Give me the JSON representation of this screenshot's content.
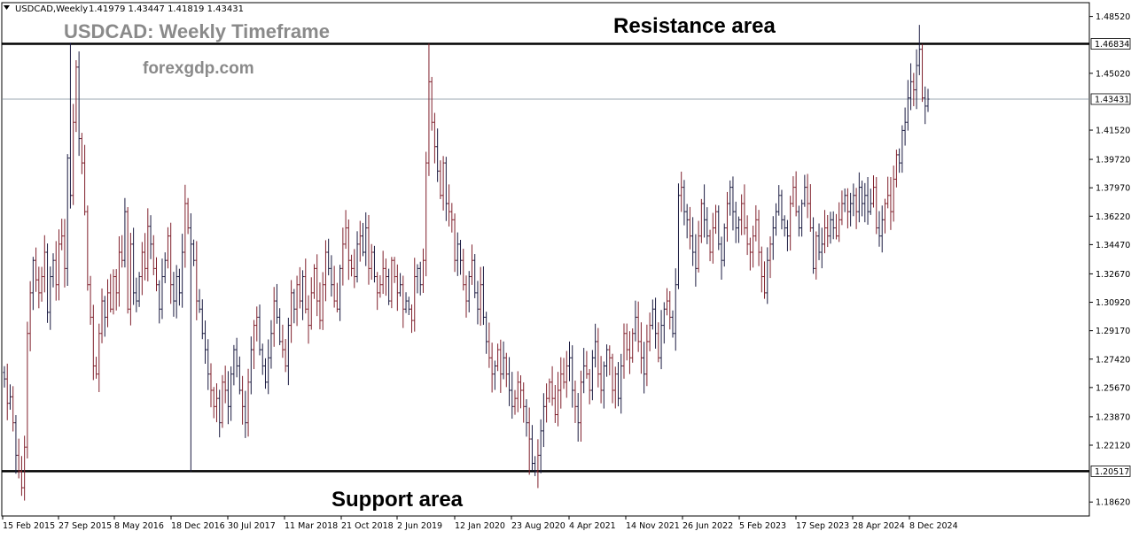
{
  "header": {
    "symbol_line": "USDCAD,Weekly",
    "ohlc": "1.41979 1.43447 1.41819 1.43431"
  },
  "annotations": {
    "title": "USDCAD: Weekly Timeframe",
    "source": "forexgdp.com",
    "resistance_label": "Resistance area",
    "support_label": "Support area"
  },
  "colors": {
    "bar": "#7f1f2b",
    "bar_dark": "#1a1a40",
    "level_line": "#000000",
    "current_price_line": "#7a8a96",
    "axis": "#000000"
  },
  "chart_data": {
    "type": "ohlc",
    "title": "USDCAD: Weekly Timeframe",
    "ylim": [
      1.1776,
      1.4937
    ],
    "y_ticks": [
      "1.48520",
      "1.45020",
      "1.41520",
      "1.39720",
      "1.37970",
      "1.36220",
      "1.34470",
      "1.32670",
      "1.30920",
      "1.29170",
      "1.27420",
      "1.25670",
      "1.23870",
      "1.22120",
      "1.18620"
    ],
    "y_tick_values": [
      1.4852,
      1.4502,
      1.4152,
      1.3972,
      1.3797,
      1.3622,
      1.3447,
      1.3267,
      1.3092,
      1.2917,
      1.2742,
      1.2567,
      1.2387,
      1.2212,
      1.1862
    ],
    "x_ticks": [
      "15 Feb 2015",
      "27 Sep 2015",
      "8 May 2016",
      "18 Dec 2016",
      "30 Jul 2017",
      "11 Mar 2018",
      "21 Oct 2018",
      "2 Jun 2019",
      "12 Jan 2020",
      "23 Aug 2020",
      "4 Apr 2021",
      "14 Nov 2021",
      "26 Jun 2022",
      "5 Feb 2023",
      "17 Sep 2023",
      "28 Apr 2024",
      "8 Dec 2024"
    ],
    "resistance_level": "1.46834",
    "support_level": "1.20517",
    "current_price": "1.43431",
    "legend": "none",
    "grid": false,
    "series": [
      {
        "closes": [
          1.262,
          1.247,
          1.251,
          1.235,
          1.215,
          1.205,
          1.195,
          1.22,
          1.29,
          1.315,
          1.335,
          1.323,
          1.315,
          1.325,
          1.34,
          1.303,
          1.325,
          1.335,
          1.32,
          1.345,
          1.35,
          1.33,
          1.398,
          1.375,
          1.42,
          1.454,
          1.41,
          1.395,
          1.365,
          1.32,
          1.3,
          1.27,
          1.265,
          1.29,
          1.31,
          1.3,
          1.315,
          1.305,
          1.325,
          1.315,
          1.34,
          1.335,
          1.365,
          1.305,
          1.345,
          1.315,
          1.31,
          1.325,
          1.34,
          1.33,
          1.356,
          1.345,
          1.33,
          1.32,
          1.305,
          1.325,
          1.335,
          1.35,
          1.32,
          1.31,
          1.325,
          1.315,
          1.34,
          1.37,
          1.355,
          1.345,
          1.335,
          1.31,
          1.305,
          1.29,
          1.28,
          1.265,
          1.255,
          1.245,
          1.25,
          1.235,
          1.26,
          1.255,
          1.245,
          1.265,
          1.28,
          1.27,
          1.255,
          1.245,
          1.235,
          1.26,
          1.28,
          1.295,
          1.3,
          1.28,
          1.27,
          1.26,
          1.275,
          1.29,
          1.31,
          1.3,
          1.285,
          1.28,
          1.27,
          1.295,
          1.315,
          1.305,
          1.32,
          1.31,
          1.325,
          1.305,
          1.295,
          1.315,
          1.33,
          1.31,
          1.298,
          1.32,
          1.34,
          1.33,
          1.32,
          1.31,
          1.305,
          1.33,
          1.345,
          1.355,
          1.335,
          1.33,
          1.325,
          1.345,
          1.35,
          1.34,
          1.355,
          1.33,
          1.34,
          1.325,
          1.315,
          1.32,
          1.33,
          1.325,
          1.31,
          1.335,
          1.325,
          1.315,
          1.32,
          1.305,
          1.31,
          1.305,
          1.298,
          1.325,
          1.33,
          1.32,
          1.335,
          1.395,
          1.445,
          1.42,
          1.405,
          1.39,
          1.375,
          1.395,
          1.37,
          1.365,
          1.36,
          1.335,
          1.345,
          1.335,
          1.32,
          1.31,
          1.325,
          1.335,
          1.315,
          1.305,
          1.32,
          1.3,
          1.285,
          1.275,
          1.265,
          1.27,
          1.28,
          1.265,
          1.275,
          1.265,
          1.255,
          1.245,
          1.25,
          1.26,
          1.255,
          1.245,
          1.235,
          1.225,
          1.21,
          1.205,
          1.215,
          1.23,
          1.245,
          1.25,
          1.26,
          1.25,
          1.24,
          1.255,
          1.265,
          1.26,
          1.27,
          1.275,
          1.255,
          1.245,
          1.235,
          1.26,
          1.27,
          1.265,
          1.255,
          1.275,
          1.285,
          1.265,
          1.255,
          1.27,
          1.28,
          1.275,
          1.255,
          1.265,
          1.25,
          1.27,
          1.29,
          1.28,
          1.275,
          1.29,
          1.3,
          1.285,
          1.275,
          1.265,
          1.285,
          1.295,
          1.305,
          1.29,
          1.275,
          1.295,
          1.305,
          1.31,
          1.3,
          1.29,
          1.32,
          1.375,
          1.38,
          1.365,
          1.36,
          1.35,
          1.34,
          1.33,
          1.35,
          1.37,
          1.36,
          1.35,
          1.34,
          1.355,
          1.365,
          1.345,
          1.335,
          1.355,
          1.37,
          1.38,
          1.365,
          1.355,
          1.36,
          1.37,
          1.355,
          1.345,
          1.34,
          1.35,
          1.36,
          1.34,
          1.325,
          1.315,
          1.335,
          1.345,
          1.355,
          1.365,
          1.375,
          1.36,
          1.355,
          1.35,
          1.37,
          1.38,
          1.365,
          1.355,
          1.37,
          1.38,
          1.37,
          1.355,
          1.33,
          1.35,
          1.34,
          1.345,
          1.355,
          1.35,
          1.36,
          1.355,
          1.35,
          1.36,
          1.37,
          1.375,
          1.365,
          1.37,
          1.375,
          1.365,
          1.38,
          1.37,
          1.375,
          1.365,
          1.37,
          1.38,
          1.355,
          1.35,
          1.36,
          1.37,
          1.375,
          1.365,
          1.385,
          1.4,
          1.395,
          1.415,
          1.42,
          1.435,
          1.445,
          1.44,
          1.455,
          1.465,
          1.435,
          1.43,
          1.4343
        ]
      }
    ]
  }
}
